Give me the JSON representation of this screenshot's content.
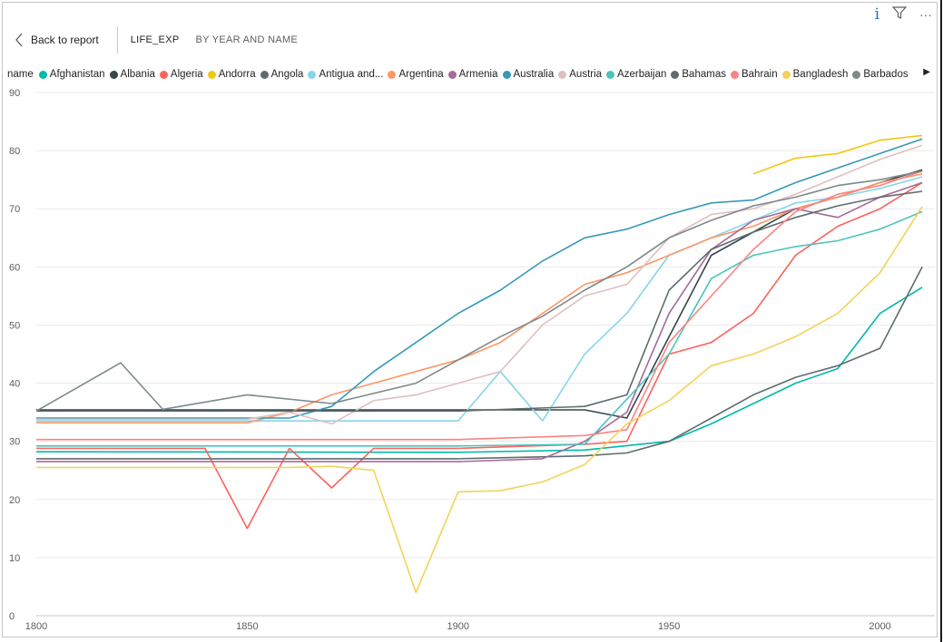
{
  "header": {
    "info_icon": "info-icon",
    "filter_icon": "filter-icon",
    "more_icon": "more-options-icon"
  },
  "topbar": {
    "back_label": "Back to report",
    "title": "LIFE_EXP",
    "subtitle": "BY YEAR AND NAME"
  },
  "legend": {
    "title": "name",
    "items": [
      {
        "label": "Afghanistan",
        "color": "#01B8AA"
      },
      {
        "label": "Albania",
        "color": "#374649"
      },
      {
        "label": "Algeria",
        "color": "#FD625E"
      },
      {
        "label": "Andorra",
        "color": "#F2C80F"
      },
      {
        "label": "Angola",
        "color": "#5F6B6D"
      },
      {
        "label": "Antigua and...",
        "color": "#8AD4EB"
      },
      {
        "label": "Argentina",
        "color": "#FE9666"
      },
      {
        "label": "Armenia",
        "color": "#A66999"
      },
      {
        "label": "Australia",
        "color": "#3599B8"
      },
      {
        "label": "Austria",
        "color": "#DFBFBF"
      },
      {
        "label": "Azerbaijan",
        "color": "#4AC5BB"
      },
      {
        "label": "Bahamas",
        "color": "#5F6B6D"
      },
      {
        "label": "Bahrain",
        "color": "#FB8281"
      },
      {
        "label": "Bangladesh",
        "color": "#F4D25A"
      },
      {
        "label": "Barbados",
        "color": "#7F898A"
      }
    ],
    "next_icon": "legend-next-arrow-icon"
  },
  "chart_data": {
    "type": "line",
    "title": "LIFE_EXP",
    "subtitle": "BY YEAR AND NAME",
    "xlabel": "",
    "ylabel": "",
    "xlim": [
      1800,
      2013
    ],
    "ylim": [
      0,
      90
    ],
    "x_ticks": [
      1800,
      1850,
      1900,
      1950,
      2000
    ],
    "y_ticks": [
      0,
      10,
      20,
      30,
      40,
      50,
      60,
      70,
      80,
      90
    ],
    "grid": "horizontal",
    "legend_position": "top",
    "series": [
      {
        "name": "Afghanistan",
        "color": "#01B8AA",
        "x": [
          1800,
          1900,
          1930,
          1950,
          1960,
          1970,
          1980,
          1990,
          2000,
          2010
        ],
        "y": [
          28.2,
          28.1,
          28.5,
          30.0,
          33.0,
          36.5,
          40.0,
          42.5,
          52.0,
          56.5
        ]
      },
      {
        "name": "Albania",
        "color": "#374649",
        "x": [
          1800,
          1900,
          1930,
          1940,
          1950,
          1960,
          1970,
          1980,
          1990,
          2000,
          2010
        ],
        "y": [
          35.4,
          35.4,
          35.4,
          34.0,
          48.0,
          62.0,
          66.0,
          70.0,
          72.0,
          74.5,
          76.7
        ]
      },
      {
        "name": "Algeria",
        "color": "#FD625E",
        "x": [
          1800,
          1840,
          1850,
          1860,
          1870,
          1880,
          1900,
          1930,
          1940,
          1950,
          1960,
          1970,
          1980,
          1990,
          2000,
          2010
        ],
        "y": [
          28.8,
          28.8,
          15.0,
          28.8,
          22.0,
          28.8,
          28.8,
          29.5,
          30.0,
          45.0,
          47.0,
          52.0,
          62.0,
          67.0,
          70.0,
          74.5
        ]
      },
      {
        "name": "Andorra",
        "color": "#F2C80F",
        "x": [
          1970,
          1980,
          1990,
          2000,
          2010
        ],
        "y": [
          76.0,
          78.7,
          79.5,
          81.8,
          82.6
        ]
      },
      {
        "name": "Angola",
        "color": "#5F6B6D",
        "x": [
          1800,
          1900,
          1930,
          1940,
          1950,
          1960,
          1970,
          1980,
          1990,
          2000,
          2010
        ],
        "y": [
          27.0,
          27.0,
          27.5,
          28.0,
          30.0,
          34.0,
          38.0,
          41.0,
          43.0,
          46.0,
          60.0
        ]
      },
      {
        "name": "Antigua and Barbuda",
        "color": "#8AD4EB",
        "x": [
          1800,
          1900,
          1910,
          1920,
          1930,
          1940,
          1950,
          1960,
          1970,
          1980,
          1990,
          2000,
          2010
        ],
        "y": [
          33.5,
          33.5,
          42.0,
          33.5,
          45.0,
          52.0,
          62.0,
          65.0,
          68.0,
          71.0,
          72.0,
          73.5,
          75.5
        ]
      },
      {
        "name": "Argentina",
        "color": "#FE9666",
        "x": [
          1800,
          1850,
          1860,
          1870,
          1880,
          1890,
          1900,
          1910,
          1920,
          1930,
          1940,
          1950,
          1960,
          1970,
          1980,
          1990,
          2000,
          2010
        ],
        "y": [
          33.2,
          33.2,
          35.0,
          38.0,
          40.0,
          42.0,
          44.0,
          47.0,
          52.0,
          57.0,
          59.0,
          62.0,
          65.0,
          67.0,
          70.0,
          72.0,
          74.5,
          76.0
        ]
      },
      {
        "name": "Armenia",
        "color": "#A66999",
        "x": [
          1800,
          1900,
          1920,
          1930,
          1940,
          1950,
          1960,
          1970,
          1980,
          1990,
          2000,
          2010
        ],
        "y": [
          26.5,
          26.5,
          27.0,
          30.0,
          35.0,
          52.0,
          63.0,
          68.0,
          70.0,
          68.5,
          72.0,
          74.5
        ]
      },
      {
        "name": "Australia",
        "color": "#3599B8",
        "x": [
          1800,
          1860,
          1870,
          1880,
          1890,
          1900,
          1910,
          1920,
          1930,
          1940,
          1950,
          1960,
          1970,
          1980,
          1990,
          2000,
          2010
        ],
        "y": [
          34.0,
          34.0,
          36.0,
          42.0,
          47.0,
          52.0,
          56.0,
          61.0,
          65.0,
          66.5,
          69.0,
          71.0,
          71.5,
          74.5,
          77.0,
          79.5,
          82.0
        ]
      },
      {
        "name": "Austria",
        "color": "#DFBFBF",
        "x": [
          1800,
          1850,
          1860,
          1870,
          1880,
          1890,
          1900,
          1910,
          1920,
          1930,
          1940,
          1950,
          1960,
          1970,
          1980,
          1990,
          2000,
          2010
        ],
        "y": [
          33.8,
          33.8,
          35.0,
          33.0,
          37.0,
          38.0,
          40.0,
          42.0,
          50.0,
          55.0,
          57.0,
          65.0,
          69.0,
          70.0,
          72.5,
          75.5,
          78.5,
          80.9
        ]
      },
      {
        "name": "Azerbaijan",
        "color": "#4AC5BB",
        "x": [
          1800,
          1900,
          1930,
          1950,
          1960,
          1970,
          1980,
          1990,
          2000,
          2010
        ],
        "y": [
          29.2,
          29.2,
          29.5,
          45.0,
          58.0,
          62.0,
          63.5,
          64.5,
          66.5,
          69.5
        ]
      },
      {
        "name": "Bahamas",
        "color": "#5F6B6D",
        "x": [
          1800,
          1900,
          1930,
          1940,
          1950,
          1960,
          1970,
          1980,
          1990,
          2000,
          2010
        ],
        "y": [
          35.2,
          35.2,
          36.0,
          38.0,
          56.0,
          63.0,
          66.0,
          68.5,
          70.5,
          72.0,
          73.0
        ]
      },
      {
        "name": "Bahrain",
        "color": "#FB8281",
        "x": [
          1800,
          1900,
          1930,
          1940,
          1950,
          1960,
          1970,
          1980,
          1990,
          2000,
          2010
        ],
        "y": [
          30.3,
          30.3,
          31.0,
          32.0,
          47.0,
          55.0,
          63.0,
          69.5,
          72.5,
          74.0,
          76.5
        ]
      },
      {
        "name": "Bangladesh",
        "color": "#F4D25A",
        "x": [
          1800,
          1860,
          1870,
          1880,
          1890,
          1900,
          1910,
          1920,
          1930,
          1940,
          1950,
          1960,
          1970,
          1980,
          1990,
          2000,
          2010
        ],
        "y": [
          25.5,
          25.5,
          25.7,
          25.0,
          4.0,
          21.3,
          21.5,
          23.0,
          26.0,
          33.0,
          37.0,
          43.0,
          45.0,
          48.0,
          52.0,
          59.0,
          70.4
        ]
      },
      {
        "name": "Barbados",
        "color": "#7F898A",
        "x": [
          1800,
          1820,
          1830,
          1850,
          1870,
          1890,
          1900,
          1910,
          1920,
          1930,
          1940,
          1950,
          1960,
          1970,
          1980,
          1990,
          2000,
          2010
        ],
        "y": [
          35.2,
          43.5,
          35.5,
          38.0,
          36.5,
          40.0,
          44.0,
          48.0,
          51.5,
          56.0,
          60.0,
          65.0,
          68.0,
          70.5,
          72.0,
          74.0,
          75.0,
          76.5
        ]
      }
    ]
  }
}
